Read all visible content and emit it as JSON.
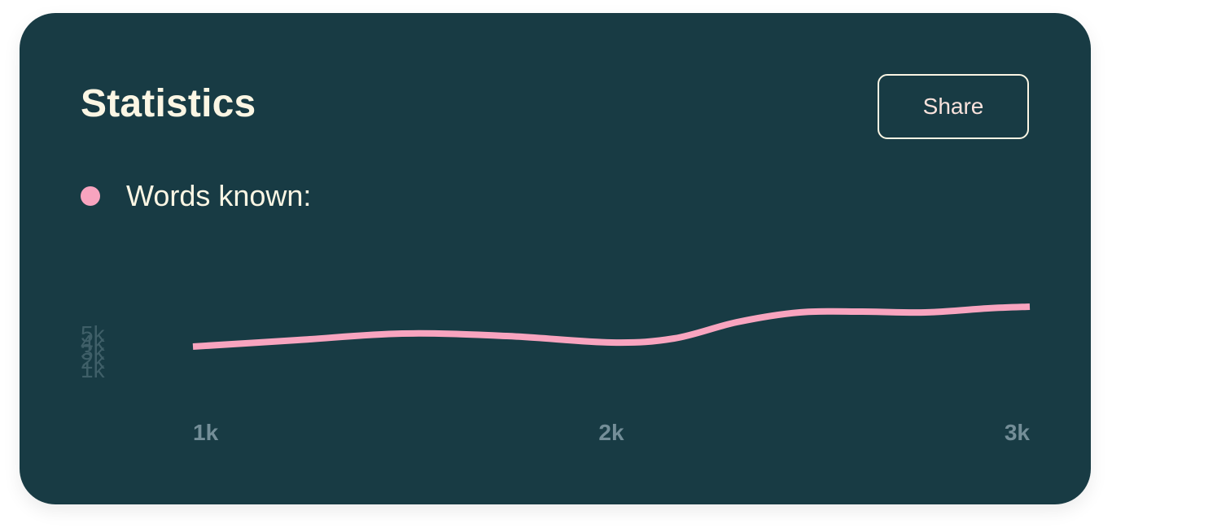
{
  "card": {
    "title": "Statistics",
    "share_label": "Share"
  },
  "colors": {
    "card_background": "#183b44",
    "series_line": "#f8a4bf",
    "title_text": "#fbf6e4",
    "x_tick_text": "#748e98",
    "y_tick_text": "#3f5f68"
  },
  "chart_data": {
    "type": "line",
    "title": "",
    "xlabel": "",
    "ylabel": "",
    "legend_position": "top-left",
    "grid": false,
    "x_ticks": [
      "1k",
      "2k",
      "3k"
    ],
    "y_ticks": [
      "1k",
      "2k",
      "3k",
      "4k",
      "5k"
    ],
    "xlim": [
      1000,
      3000
    ],
    "ylim": [
      0,
      120
    ],
    "series": [
      {
        "name": "Words known:",
        "color": "#f8a4bf",
        "x": [
          1000,
          1250,
          1500,
          1750,
          2000,
          2150,
          2300,
          2450,
          2600,
          2750,
          2900,
          3000
        ],
        "y": [
          10,
          18,
          26,
          23,
          15,
          20,
          40,
          52,
          53,
          52,
          57,
          59
        ]
      }
    ]
  }
}
